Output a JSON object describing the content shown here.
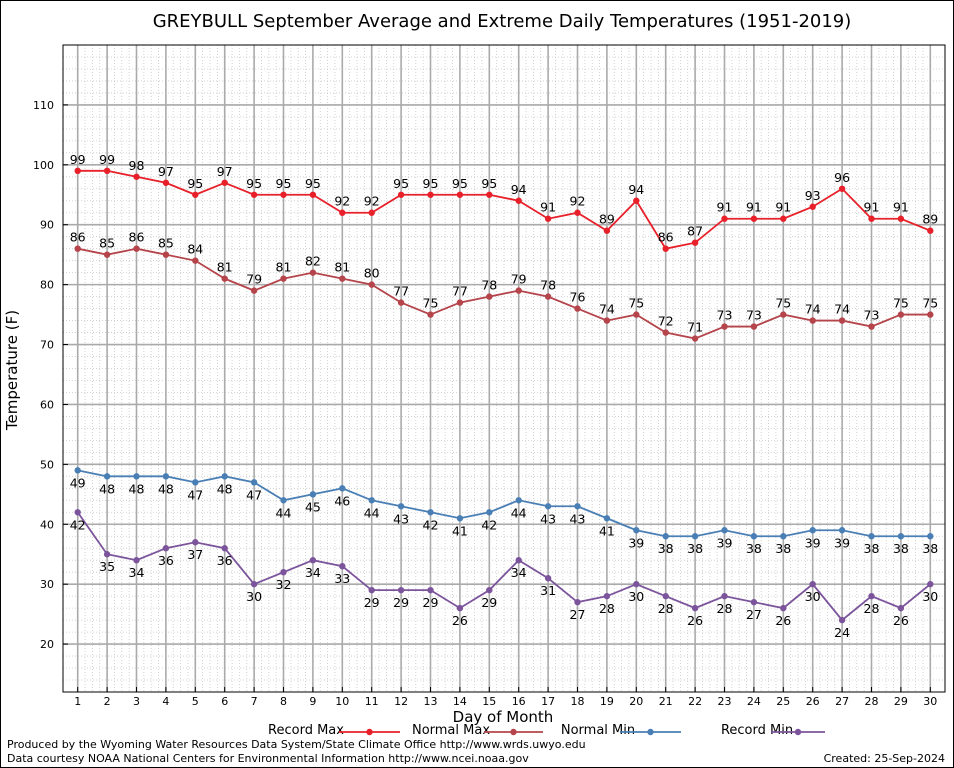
{
  "chart_data": {
    "type": "line",
    "title": "GREYBULL September Average and Extreme Daily Temperatures (1951-2019)",
    "xlabel": "Day of Month",
    "ylabel": "Temperature (F)",
    "x": [
      1,
      2,
      3,
      4,
      5,
      6,
      7,
      8,
      9,
      10,
      11,
      12,
      13,
      14,
      15,
      16,
      17,
      18,
      19,
      20,
      21,
      22,
      23,
      24,
      25,
      26,
      27,
      28,
      29,
      30
    ],
    "xlim": [
      0.5,
      30.5
    ],
    "ylim": [
      12,
      120
    ],
    "yticks": [
      20,
      30,
      40,
      50,
      60,
      70,
      80,
      90,
      100,
      110
    ],
    "grid": true,
    "legend_position": "bottom",
    "series": [
      {
        "name": "Record Max",
        "color": "#e8202a",
        "values": [
          99,
          99,
          98,
          97,
          95,
          97,
          95,
          95,
          95,
          92,
          92,
          95,
          95,
          95,
          95,
          94,
          91,
          92,
          89,
          94,
          86,
          87,
          91,
          91,
          91,
          93,
          96,
          91,
          91,
          89
        ]
      },
      {
        "name": "Normal Max",
        "color": "#b5444b",
        "values": [
          86,
          85,
          86,
          85,
          84,
          81,
          79,
          81,
          82,
          81,
          80,
          77,
          75,
          77,
          78,
          79,
          78,
          76,
          74,
          75,
          72,
          71,
          73,
          73,
          75,
          74,
          74,
          73,
          75,
          75
        ]
      },
      {
        "name": "Normal Min",
        "color": "#4a7fb5",
        "values": [
          49,
          48,
          48,
          48,
          47,
          48,
          47,
          44,
          45,
          46,
          44,
          43,
          42,
          41,
          42,
          44,
          43,
          43,
          41,
          39,
          38,
          38,
          39,
          38,
          38,
          39,
          39,
          38,
          38,
          38
        ]
      },
      {
        "name": "Record Min",
        "color": "#7b549b",
        "values": [
          42,
          35,
          34,
          36,
          37,
          36,
          30,
          32,
          34,
          33,
          29,
          29,
          29,
          26,
          29,
          34,
          31,
          27,
          28,
          30,
          28,
          26,
          28,
          27,
          26,
          30,
          24,
          28,
          26,
          30
        ]
      }
    ]
  },
  "footer": {
    "produced_by": "Produced by the Wyoming Water Resources Data System/State Climate Office http://www.wrds.uwyo.edu",
    "data_courtesy": "Data courtesy NOAA National Centers for Environmental Information http://www.ncei.noaa.gov",
    "created": "Created:  25-Sep-2024"
  }
}
